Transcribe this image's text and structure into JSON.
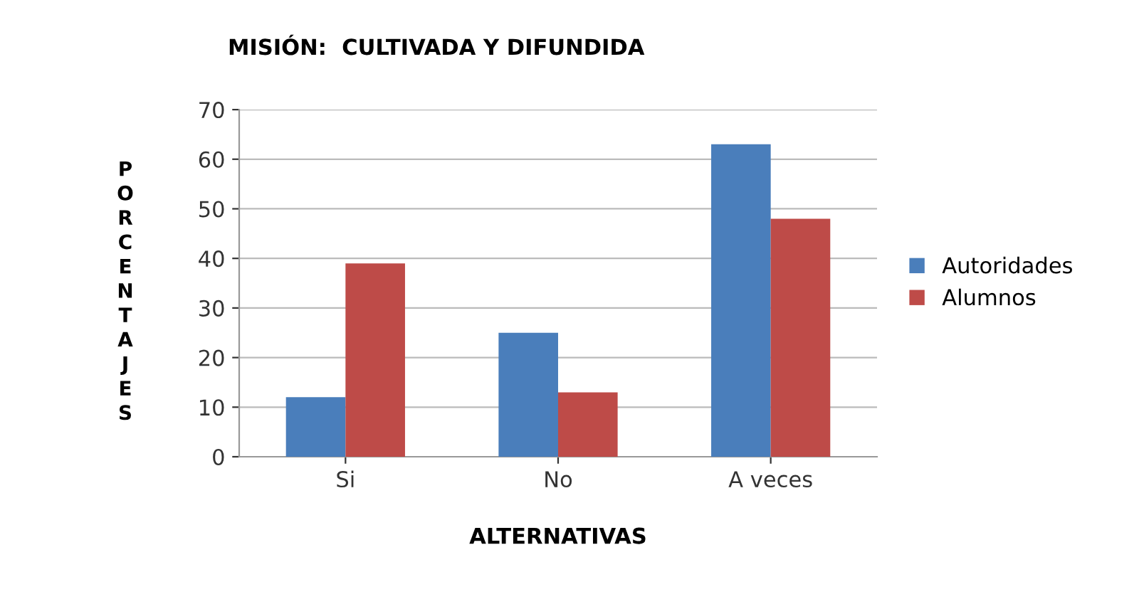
{
  "chart_data": {
    "type": "bar",
    "title": "MISIÓN:  CULTIVADA Y DIFUNDIDA",
    "xlabel": "ALTERNATIVAS",
    "ylabel": "PORCENTAJES",
    "categories": [
      "Si",
      "No",
      "A veces"
    ],
    "series": [
      {
        "name": "Autoridades",
        "color": "#4a7ebb",
        "values": [
          12,
          25,
          63
        ]
      },
      {
        "name": "Alumnos",
        "color": "#be4b48",
        "values": [
          39,
          13,
          48
        ]
      }
    ],
    "ylim": [
      0,
      70
    ],
    "yticks": [
      0,
      10,
      20,
      30,
      40,
      50,
      60,
      70
    ],
    "grid": "y",
    "legend": "right"
  }
}
